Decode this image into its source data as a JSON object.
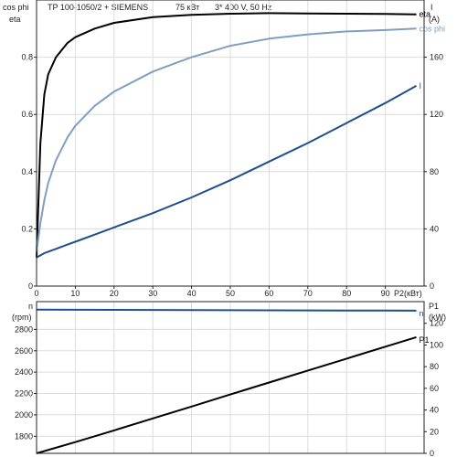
{
  "header": {
    "model": "TP 100-1050/2 + SIEMENS",
    "power": "75 кВт",
    "supply": "3* 400 V, 50 Hz"
  },
  "colors": {
    "eta": "#000000",
    "cos_phi": "#7f9fbf",
    "current": "#1f4e8c",
    "speed": "#1f4e8c",
    "p1": "#000000",
    "grid": "#dcdcdc",
    "frame": "#222222"
  },
  "chart_data": [
    {
      "type": "line",
      "x": [
        0,
        1,
        2,
        3,
        5,
        8,
        10,
        15,
        20,
        30,
        40,
        50,
        60,
        70,
        80,
        90,
        98
      ],
      "xlim": [
        0,
        100
      ],
      "xticks": [
        0,
        10,
        20,
        30,
        40,
        50,
        60,
        70,
        80,
        90
      ],
      "xlabel": "P2(кВт)",
      "left_axis_labels": [
        "cos phi",
        "eta"
      ],
      "ylim_left": [
        0,
        1.0
      ],
      "yticks_left": [
        0,
        0.2,
        0.4,
        0.6,
        0.8
      ],
      "right_axis_labels": [
        "I",
        "(A)"
      ],
      "ylim_right": [
        0,
        200
      ],
      "yticks_right": [
        0,
        40,
        80,
        120,
        160
      ],
      "grid": true,
      "series": [
        {
          "name": "eta",
          "axis": "left",
          "color_key": "eta",
          "values": [
            0.1,
            0.5,
            0.67,
            0.74,
            0.8,
            0.85,
            0.87,
            0.9,
            0.92,
            0.94,
            0.948,
            0.952,
            0.954,
            0.953,
            0.952,
            0.951,
            0.95
          ]
        },
        {
          "name": "cos phi",
          "axis": "left",
          "color_key": "cos_phi",
          "values": [
            0.12,
            0.22,
            0.3,
            0.36,
            0.44,
            0.52,
            0.56,
            0.63,
            0.68,
            0.75,
            0.8,
            0.84,
            0.865,
            0.88,
            0.89,
            0.895,
            0.9
          ]
        },
        {
          "name": "I",
          "axis": "right",
          "color_key": "current",
          "values": [
            20,
            21.5,
            23,
            24,
            26,
            29,
            31,
            36,
            41,
            51,
            62,
            74,
            87,
            100,
            114,
            128,
            140
          ]
        }
      ]
    },
    {
      "type": "line",
      "x": [
        0,
        10,
        20,
        30,
        40,
        50,
        60,
        70,
        80,
        90,
        98
      ],
      "xlim": [
        0,
        100
      ],
      "grid": true,
      "left_axis_labels": [
        "n",
        "(rpm)"
      ],
      "ylim_left": [
        1640,
        3060
      ],
      "yticks_left": [
        1800,
        2000,
        2200,
        2400,
        2600,
        2800
      ],
      "right_axis_labels": [
        "P1",
        "(kW)"
      ],
      "ylim_right": [
        0,
        140
      ],
      "yticks_right": [
        0,
        20,
        40,
        60,
        80,
        100,
        120
      ],
      "series": [
        {
          "name": "n",
          "axis": "left",
          "color_key": "speed",
          "values": [
            2985,
            2984,
            2983,
            2982,
            2981,
            2980,
            2979,
            2978,
            2977,
            2976,
            2975
          ]
        },
        {
          "name": "P1",
          "axis": "right",
          "color_key": "p1",
          "values": [
            0,
            10.4,
            21.2,
            32.2,
            43.2,
            54.3,
            65.4,
            76.4,
            87.4,
            98.4,
            107.2
          ]
        }
      ]
    }
  ]
}
